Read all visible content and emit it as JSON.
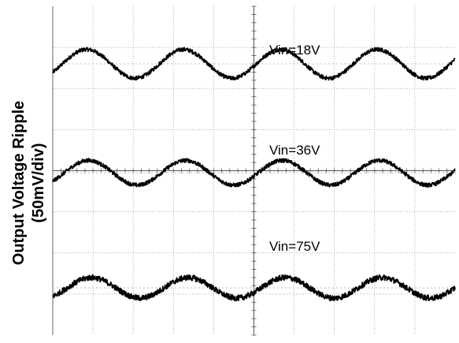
{
  "chart_data": {
    "type": "line",
    "title": "",
    "ylabel": "Output Voltage Ripple",
    "ylabel_unit": "(50mV/div)",
    "xlabel": "",
    "grid": true,
    "divisions": {
      "x": 10,
      "y": 8
    },
    "trace_color": "#000000",
    "grid_color": "#999999",
    "series": [
      {
        "name": "Vin=18V",
        "baseline_div": 6.6,
        "amplitude_div": 0.35,
        "phase": 0.1,
        "periods": 4.15,
        "noise_div": 0.05,
        "dashed_ref_div": 6.6
      },
      {
        "name": "Vin=36V",
        "baseline_div": 3.95,
        "amplitude_div": 0.3,
        "phase": 0.12,
        "periods": 4.15,
        "noise_div": 0.05,
        "dashed_ref_div": 3.95
      },
      {
        "name": "Vin=75V",
        "baseline_div": 1.15,
        "amplitude_div": 0.25,
        "phase": 0.15,
        "periods": 4.15,
        "noise_div": 0.07,
        "dashed_ref_div": 1.15
      }
    ]
  }
}
